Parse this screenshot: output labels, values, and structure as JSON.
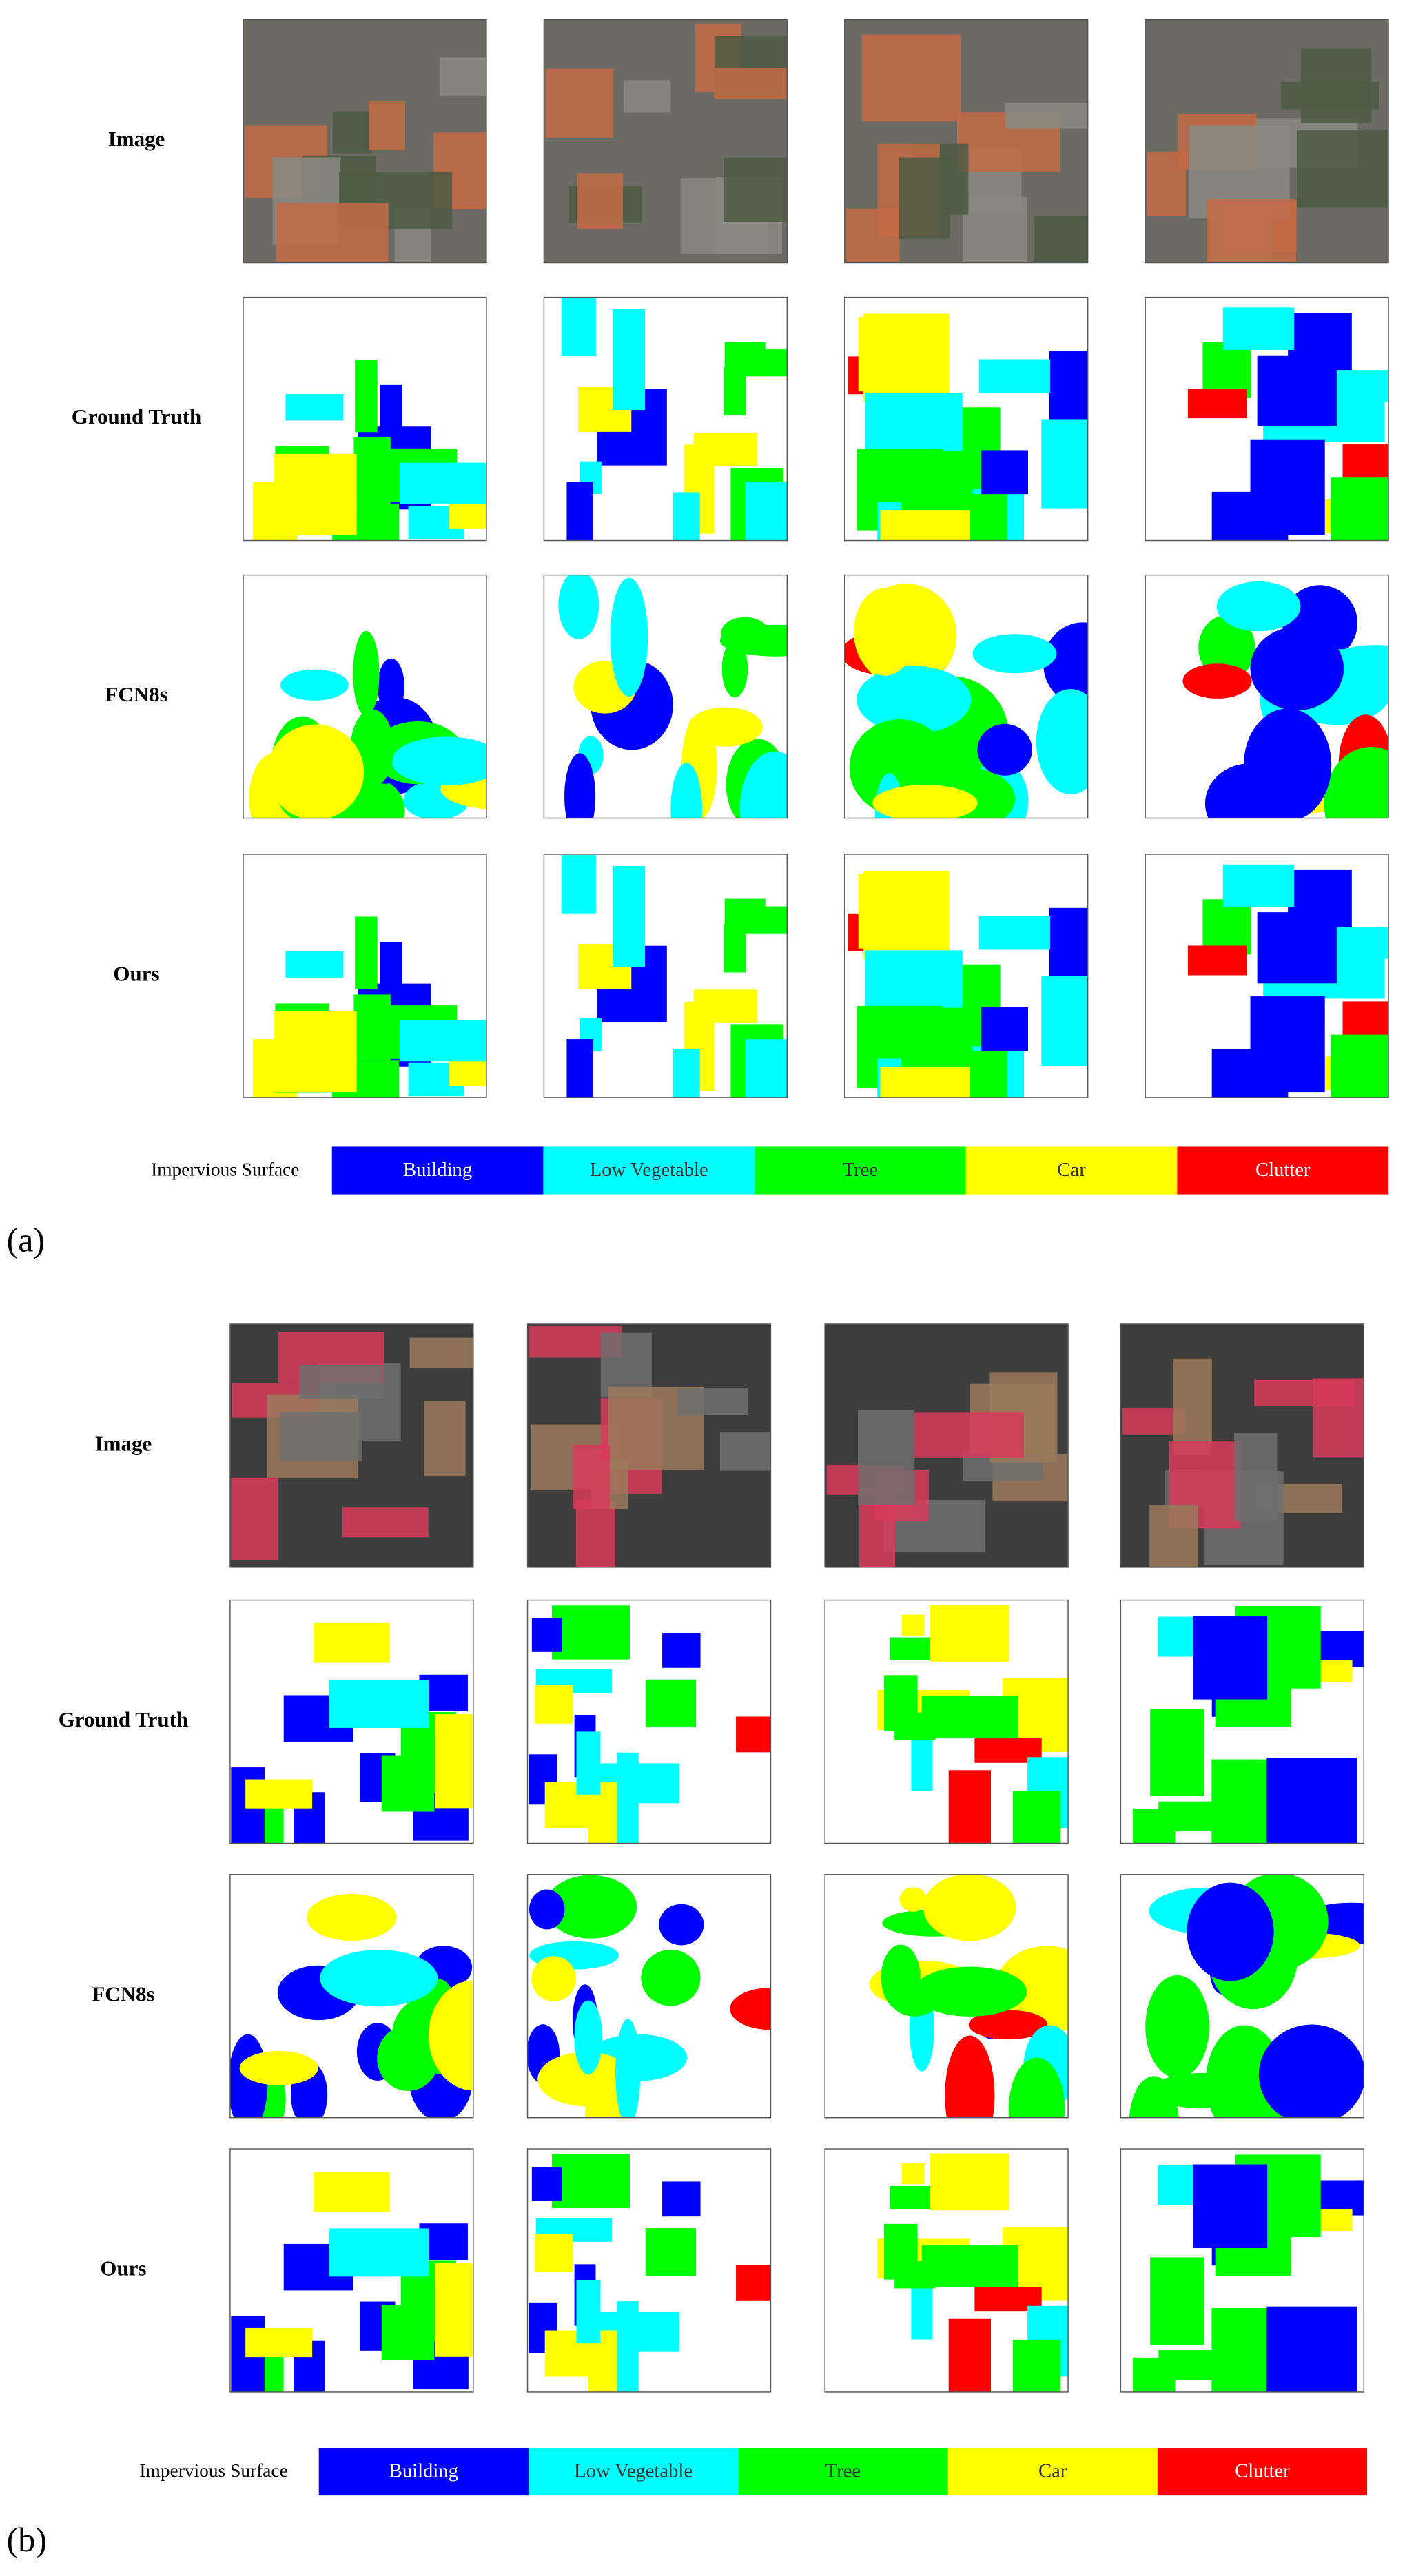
{
  "panels": [
    {
      "label": "(a)",
      "row_labels": [
        "Image",
        "Ground Truth",
        "FCN8s",
        "Ours"
      ],
      "legend": [
        {
          "name": "Impervious Surface",
          "color": "#ffffff"
        },
        {
          "name": "Building",
          "color": "#0000ff"
        },
        {
          "name": "Low Vegetable",
          "color": "#00ffff"
        },
        {
          "name": "Tree",
          "color": "#00ff00"
        },
        {
          "name": "Car",
          "color": "#ffff00"
        },
        {
          "name": "Clutter",
          "color": "#ff0000"
        }
      ]
    },
    {
      "label": "(b)",
      "row_labels": [
        "Image",
        "Ground Truth",
        "FCN8s",
        "Ours"
      ],
      "legend": [
        {
          "name": "Impervious Surface",
          "color": "#ffffff"
        },
        {
          "name": "Building",
          "color": "#0000ff"
        },
        {
          "name": "Low Vegetable",
          "color": "#00ffff"
        },
        {
          "name": "Tree",
          "color": "#00ff00"
        },
        {
          "name": "Car",
          "color": "#ffff00"
        },
        {
          "name": "Clutter",
          "color": "#ff0000"
        }
      ]
    }
  ]
}
